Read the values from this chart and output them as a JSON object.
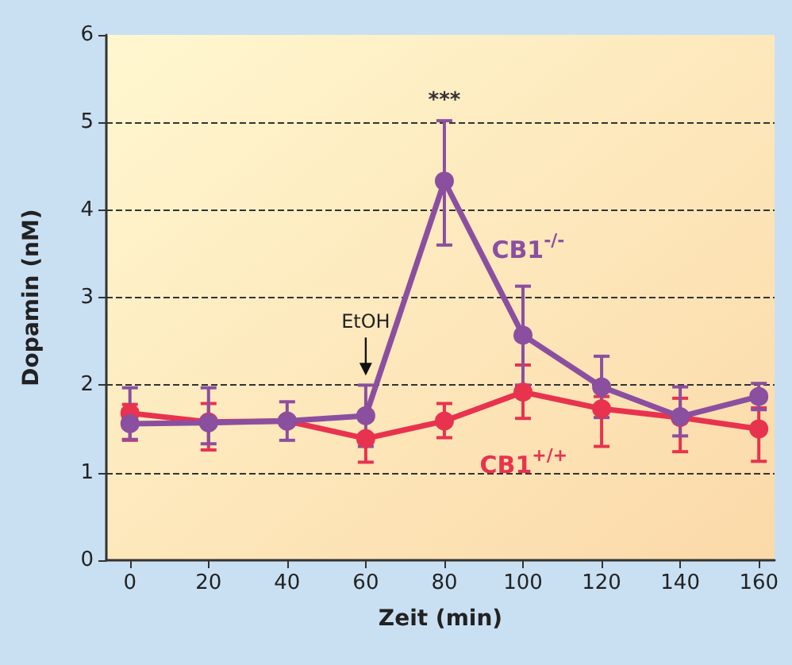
{
  "chart_data": {
    "type": "line",
    "xlabel": "Zeit (min)",
    "ylabel": "Dopamin (nM)",
    "x": [
      0,
      20,
      40,
      60,
      80,
      100,
      120,
      140,
      160
    ],
    "series": [
      {
        "name": "CB1$^{+/+}$",
        "color": "#e8334f",
        "values": [
          1.68,
          1.58,
          1.59,
          1.39,
          1.59,
          1.92,
          1.73,
          1.63,
          1.5
        ],
        "errors": [
          [
            1.37,
            1.78
          ],
          [
            1.26,
            1.79
          ],
          null,
          [
            1.12,
            1.39
          ],
          [
            1.4,
            1.79
          ],
          [
            1.62,
            2.23
          ],
          [
            1.3,
            1.87
          ],
          [
            1.24,
            1.85
          ],
          [
            1.13,
            1.74
          ]
        ]
      },
      {
        "name": "CB1$^{-/-}$",
        "color": "#8b4fa0",
        "values": [
          1.56,
          1.57,
          1.59,
          1.65,
          4.33,
          2.57,
          1.98,
          1.64,
          1.87
        ],
        "errors": [
          [
            1.38,
            1.97
          ],
          [
            1.33,
            1.97
          ],
          [
            1.37,
            1.81
          ],
          [
            1.3,
            2.0
          ],
          [
            3.6,
            5.02
          ],
          [
            2.0,
            3.13
          ],
          [
            1.63,
            2.33
          ],
          [
            1.42,
            1.98
          ],
          [
            1.72,
            2.02
          ]
        ]
      }
    ],
    "annotations": [
      {
        "text": "***",
        "x": 80,
        "y": 5.02
      },
      {
        "text": "EtOH",
        "x": 60,
        "y": 2.0
      }
    ],
    "xlim": [
      -6,
      164
    ],
    "xticks": [
      0,
      20,
      40,
      60,
      80,
      100,
      120,
      140,
      160
    ],
    "ylim": [
      0,
      6
    ],
    "yticks": [
      0,
      1,
      2,
      3,
      4,
      5,
      6
    ],
    "grid": "y",
    "legend": false,
    "marker": "circle",
    "line_style": "solid"
  }
}
